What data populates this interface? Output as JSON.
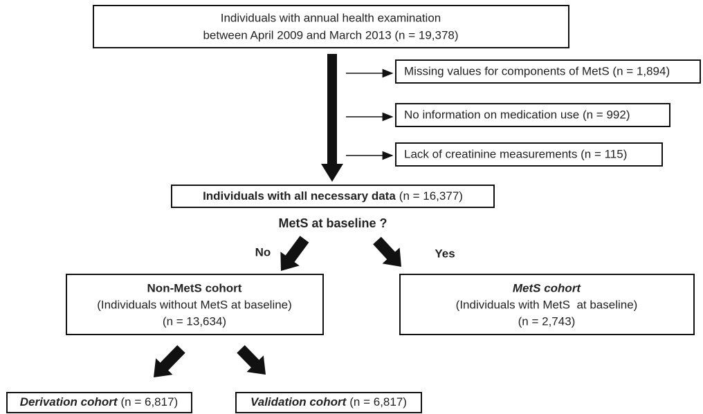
{
  "top": {
    "lines": [
      "Individuals with annual health examination",
      "between April 2009 and March 2013 (n = 19,378)"
    ]
  },
  "exclusions": [
    "Missing values for components of MetS (n = 1,894)",
    "No information on medication use (n = 992)",
    "Lack of creatinine measurements (n = 115)"
  ],
  "all_data": {
    "label": "Individuals with all necessary data",
    "count": "(n = 16,377)"
  },
  "question": "MetS at baseline ?",
  "no": "No",
  "yes": "Yes",
  "non_mets": {
    "title": "Non-MetS cohort",
    "lines": [
      "(Individuals without MetS at baseline)",
      "(n = 13,634)"
    ]
  },
  "mets": {
    "title": "MetS cohort",
    "lines": [
      "(Individuals with MetS  at baseline)",
      "(n = 2,743)"
    ]
  },
  "derivation": {
    "label": "Derivation cohort",
    "count": "(n = 6,817)"
  },
  "validation": {
    "label": "Validation cohort",
    "count": "(n = 6,817)"
  }
}
